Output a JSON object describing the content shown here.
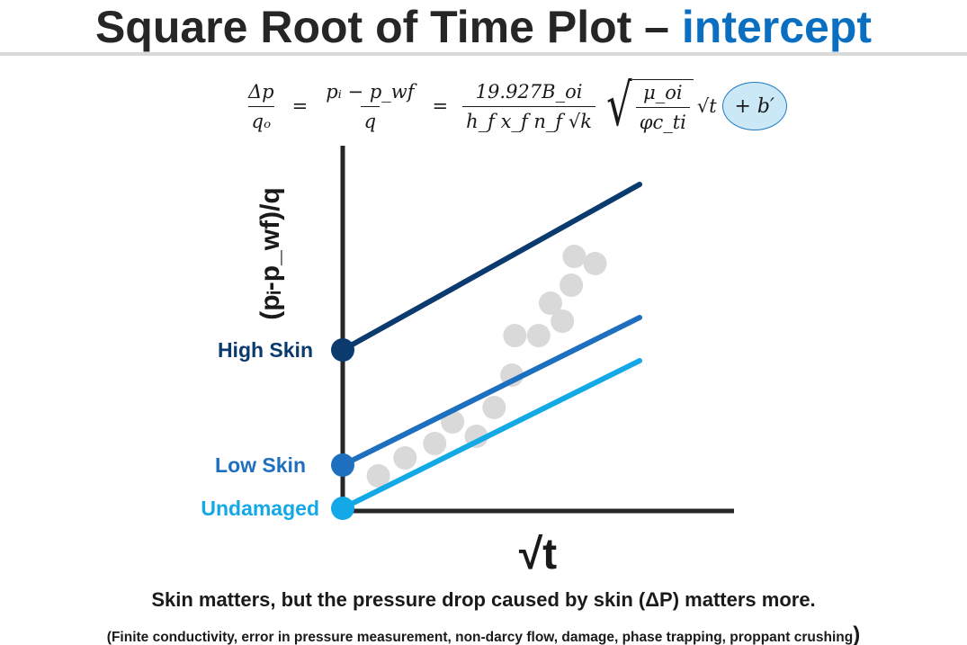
{
  "title": {
    "main": "Square Root of Time Plot –",
    "accent": "intercept"
  },
  "formula": {
    "lhs_num": "Δp",
    "lhs_den": "qₒ",
    "mid_num": "pᵢ − p_wf",
    "mid_den": "q",
    "coef_num": "19.927B_oi",
    "coef_den": "h_f x_f n_f √k",
    "root_num": "μ_oi",
    "root_den": "φc_ti",
    "time_term": "√t",
    "intercept": "+ b′"
  },
  "chart_data": {
    "type": "line",
    "xlabel": "√t",
    "ylabel": "(pᵢ-p_wf)/q",
    "series": [
      {
        "name": "High Skin",
        "intercept": 0.44,
        "slope": 0.46,
        "color": "#0b3a6e"
      },
      {
        "name": "Low Skin",
        "intercept": 0.12,
        "slope": 0.41,
        "color": "#1f6fbf"
      },
      {
        "name": "Undamaged",
        "intercept": 0.0,
        "slope": 0.41,
        "color": "#13a8e6"
      }
    ],
    "scatter": {
      "color": "#d9d9d9",
      "points": [
        [
          0.12,
          0.09
        ],
        [
          0.21,
          0.14
        ],
        [
          0.31,
          0.18
        ],
        [
          0.37,
          0.24
        ],
        [
          0.45,
          0.2
        ],
        [
          0.51,
          0.28
        ],
        [
          0.57,
          0.37
        ],
        [
          0.58,
          0.48
        ],
        [
          0.66,
          0.48
        ],
        [
          0.74,
          0.52
        ],
        [
          0.7,
          0.57
        ],
        [
          0.77,
          0.62
        ],
        [
          0.78,
          0.7
        ],
        [
          0.85,
          0.68
        ]
      ]
    },
    "xlim": [
      0,
      1
    ],
    "ylim": [
      0,
      1
    ],
    "grid": false,
    "legend": "left-of-axis labels"
  },
  "footer": {
    "main": "Skin matters, but the pressure drop caused by skin (ΔP) matters more.",
    "sub": "(Finite conductivity, error in pressure measurement, non-darcy flow, damage, phase trapping, proppant crushing",
    "sub_close": ")"
  }
}
